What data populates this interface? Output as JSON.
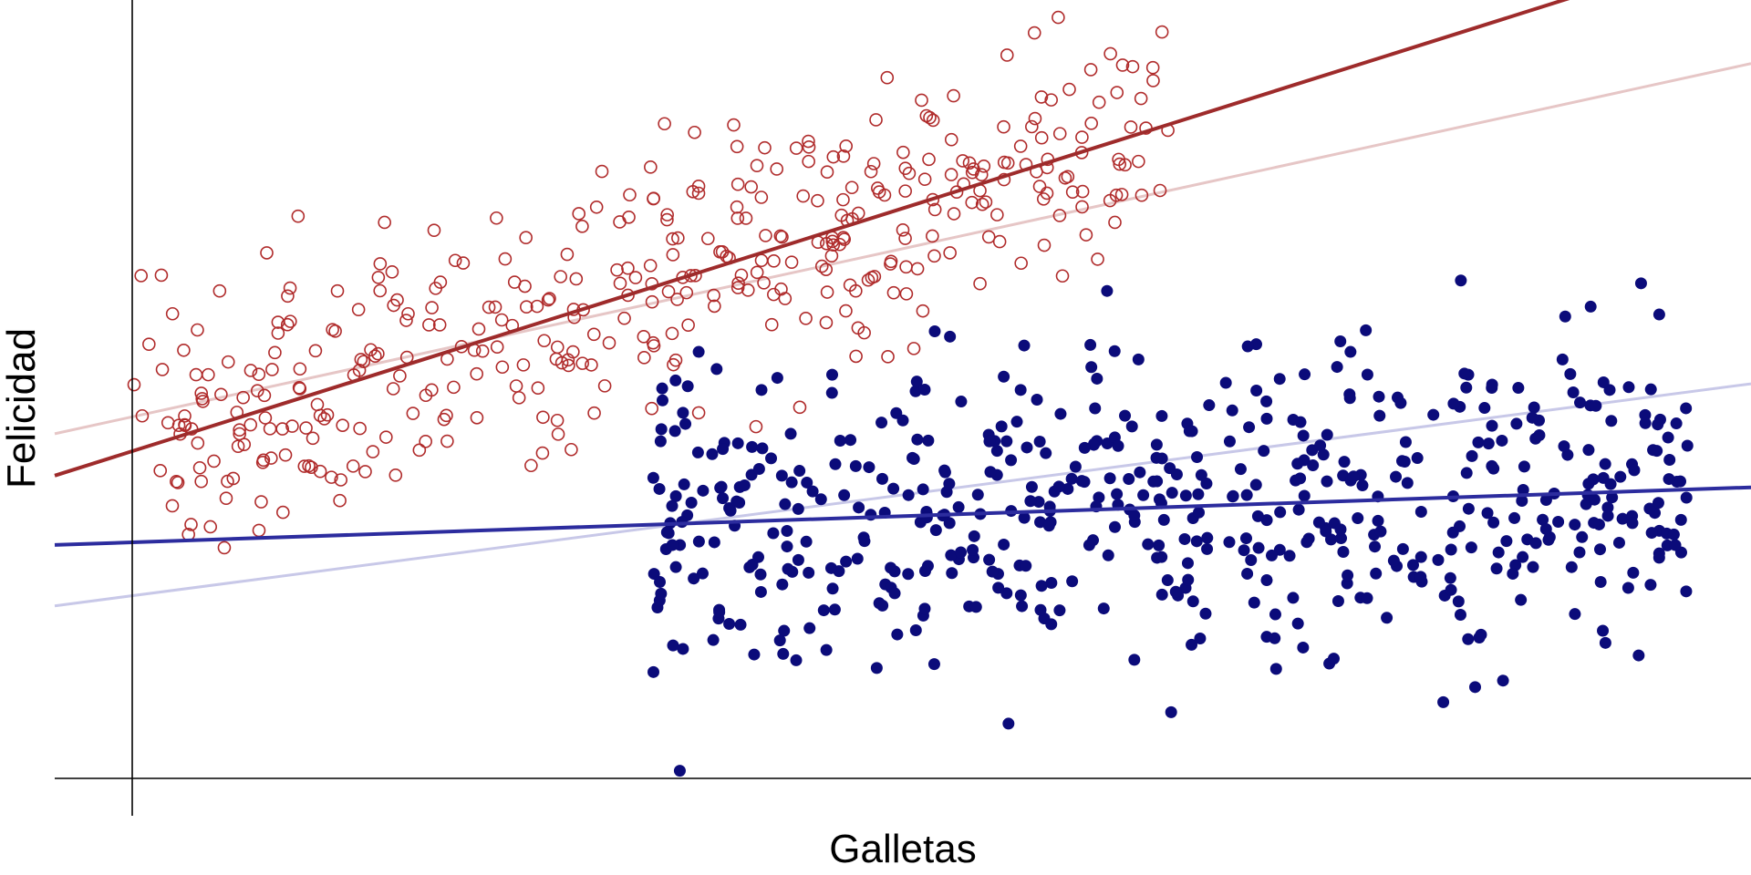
{
  "chart_data": {
    "type": "scatter",
    "title": "",
    "xlabel": "Galletas",
    "ylabel": "Felicidad",
    "xlim": [
      -0.5,
      10.3
    ],
    "ylim": [
      -0.5,
      9.6
    ],
    "axes_ticks": false,
    "grid": false,
    "legend": "none",
    "colors": {
      "group_a": "#b02b2b",
      "group_a_fit": "#9e2b2b",
      "group_a_line_faint": "#e6c6c6",
      "group_b": "#0b0b7a",
      "group_b_fit": "#2c2c9e",
      "group_b_line_faint": "#c8c8e8",
      "axes": "#000000"
    },
    "series": [
      {
        "marker": "open-circle",
        "color": "#b02b2b",
        "n_points": 420,
        "x_range": [
          0,
          6.6
        ],
        "fit_line": {
          "intercept": 3.8,
          "slope": 0.65
        },
        "faint_line": {
          "intercept": 4.25,
          "slope": 0.45
        },
        "points": [
          [
            0.05,
            6.1
          ],
          [
            0.1,
            5.2
          ],
          [
            0.25,
            5.6
          ],
          [
            0.4,
            4.8
          ],
          [
            0.55,
            5.9
          ],
          [
            0.7,
            4.5
          ],
          [
            0.85,
            6.4
          ],
          [
            1.0,
            5.5
          ],
          [
            1.1,
            4.1
          ],
          [
            1.3,
            5.9
          ],
          [
            1.45,
            5.0
          ],
          [
            1.6,
            6.8
          ],
          [
            1.75,
            5.6
          ],
          [
            1.9,
            4.6
          ],
          [
            2.05,
            6.3
          ],
          [
            2.2,
            5.4
          ],
          [
            2.35,
            4.9
          ],
          [
            2.5,
            6.6
          ],
          [
            2.65,
            5.8
          ],
          [
            2.8,
            5.1
          ],
          [
            2.95,
            7.0
          ],
          [
            3.1,
            6.0
          ],
          [
            3.25,
            5.3
          ],
          [
            3.4,
            6.9
          ],
          [
            3.55,
            6.1
          ],
          [
            3.7,
            5.7
          ],
          [
            3.85,
            7.3
          ],
          [
            4.0,
            6.3
          ],
          [
            4.15,
            5.8
          ],
          [
            4.3,
            7.6
          ],
          [
            4.45,
            6.6
          ],
          [
            4.6,
            5.9
          ],
          [
            4.75,
            7.2
          ],
          [
            4.9,
            6.7
          ],
          [
            5.05,
            8.2
          ],
          [
            5.2,
            6.4
          ],
          [
            5.35,
            7.5
          ],
          [
            5.5,
            6.9
          ],
          [
            5.65,
            7.8
          ],
          [
            5.8,
            6.5
          ],
          [
            5.95,
            7.4
          ],
          [
            6.1,
            8.1
          ],
          [
            6.25,
            6.8
          ],
          [
            6.4,
            7.6
          ],
          [
            6.55,
            9.3
          ],
          [
            2.7,
            4.2
          ],
          [
            1.4,
            3.6
          ],
          [
            0.6,
            3.4
          ],
          [
            3.6,
            4.3
          ],
          [
            4.8,
            8.7
          ]
        ]
      },
      {
        "marker": "filled-circle",
        "color": "#0b0b7a",
        "n_points": 560,
        "x_range": [
          3.3,
          9.9
        ],
        "fit_line": {
          "intercept": 2.6,
          "slope": 0.07
        },
        "faint_line": {
          "intercept": 1.9,
          "slope": 0.27
        },
        "points": [
          [
            3.35,
            3.3
          ],
          [
            3.5,
            4.3
          ],
          [
            3.5,
            1.2
          ],
          [
            3.6,
            5.1
          ],
          [
            3.7,
            2.6
          ],
          [
            3.85,
            3.9
          ],
          [
            4.0,
            4.6
          ],
          [
            4.15,
            3.1
          ],
          [
            4.3,
            2.2
          ],
          [
            4.45,
            4.8
          ],
          [
            4.6,
            3.6
          ],
          [
            4.75,
            1.8
          ],
          [
            4.9,
            4.2
          ],
          [
            5.05,
            3.0
          ],
          [
            5.2,
            5.3
          ],
          [
            5.35,
            2.4
          ],
          [
            5.5,
            3.8
          ],
          [
            5.65,
            4.6
          ],
          [
            5.8,
            1.6
          ],
          [
            5.95,
            3.3
          ],
          [
            6.1,
            4.9
          ],
          [
            6.25,
            2.8
          ],
          [
            6.4,
            5.0
          ],
          [
            6.55,
            3.7
          ],
          [
            6.7,
            2.0
          ],
          [
            6.85,
            4.4
          ],
          [
            7.0,
            3.2
          ],
          [
            7.15,
            5.2
          ],
          [
            7.3,
            2.5
          ],
          [
            7.45,
            4.0
          ],
          [
            7.6,
            3.4
          ],
          [
            7.75,
            5.1
          ],
          [
            7.9,
            2.7
          ],
          [
            8.05,
            4.5
          ],
          [
            8.2,
            3.0
          ],
          [
            8.35,
            1.9
          ],
          [
            8.5,
            4.8
          ],
          [
            8.65,
            3.6
          ],
          [
            8.8,
            2.3
          ],
          [
            8.95,
            4.2
          ],
          [
            9.1,
            5.0
          ],
          [
            9.25,
            3.1
          ],
          [
            9.4,
            4.6
          ],
          [
            9.55,
            2.2
          ],
          [
            9.7,
            3.8
          ],
          [
            9.85,
            3.4
          ],
          [
            9.6,
            6.0
          ],
          [
            5.1,
            1.0
          ],
          [
            3.48,
            -0.4
          ],
          [
            6.2,
            5.9
          ]
        ]
      }
    ]
  }
}
